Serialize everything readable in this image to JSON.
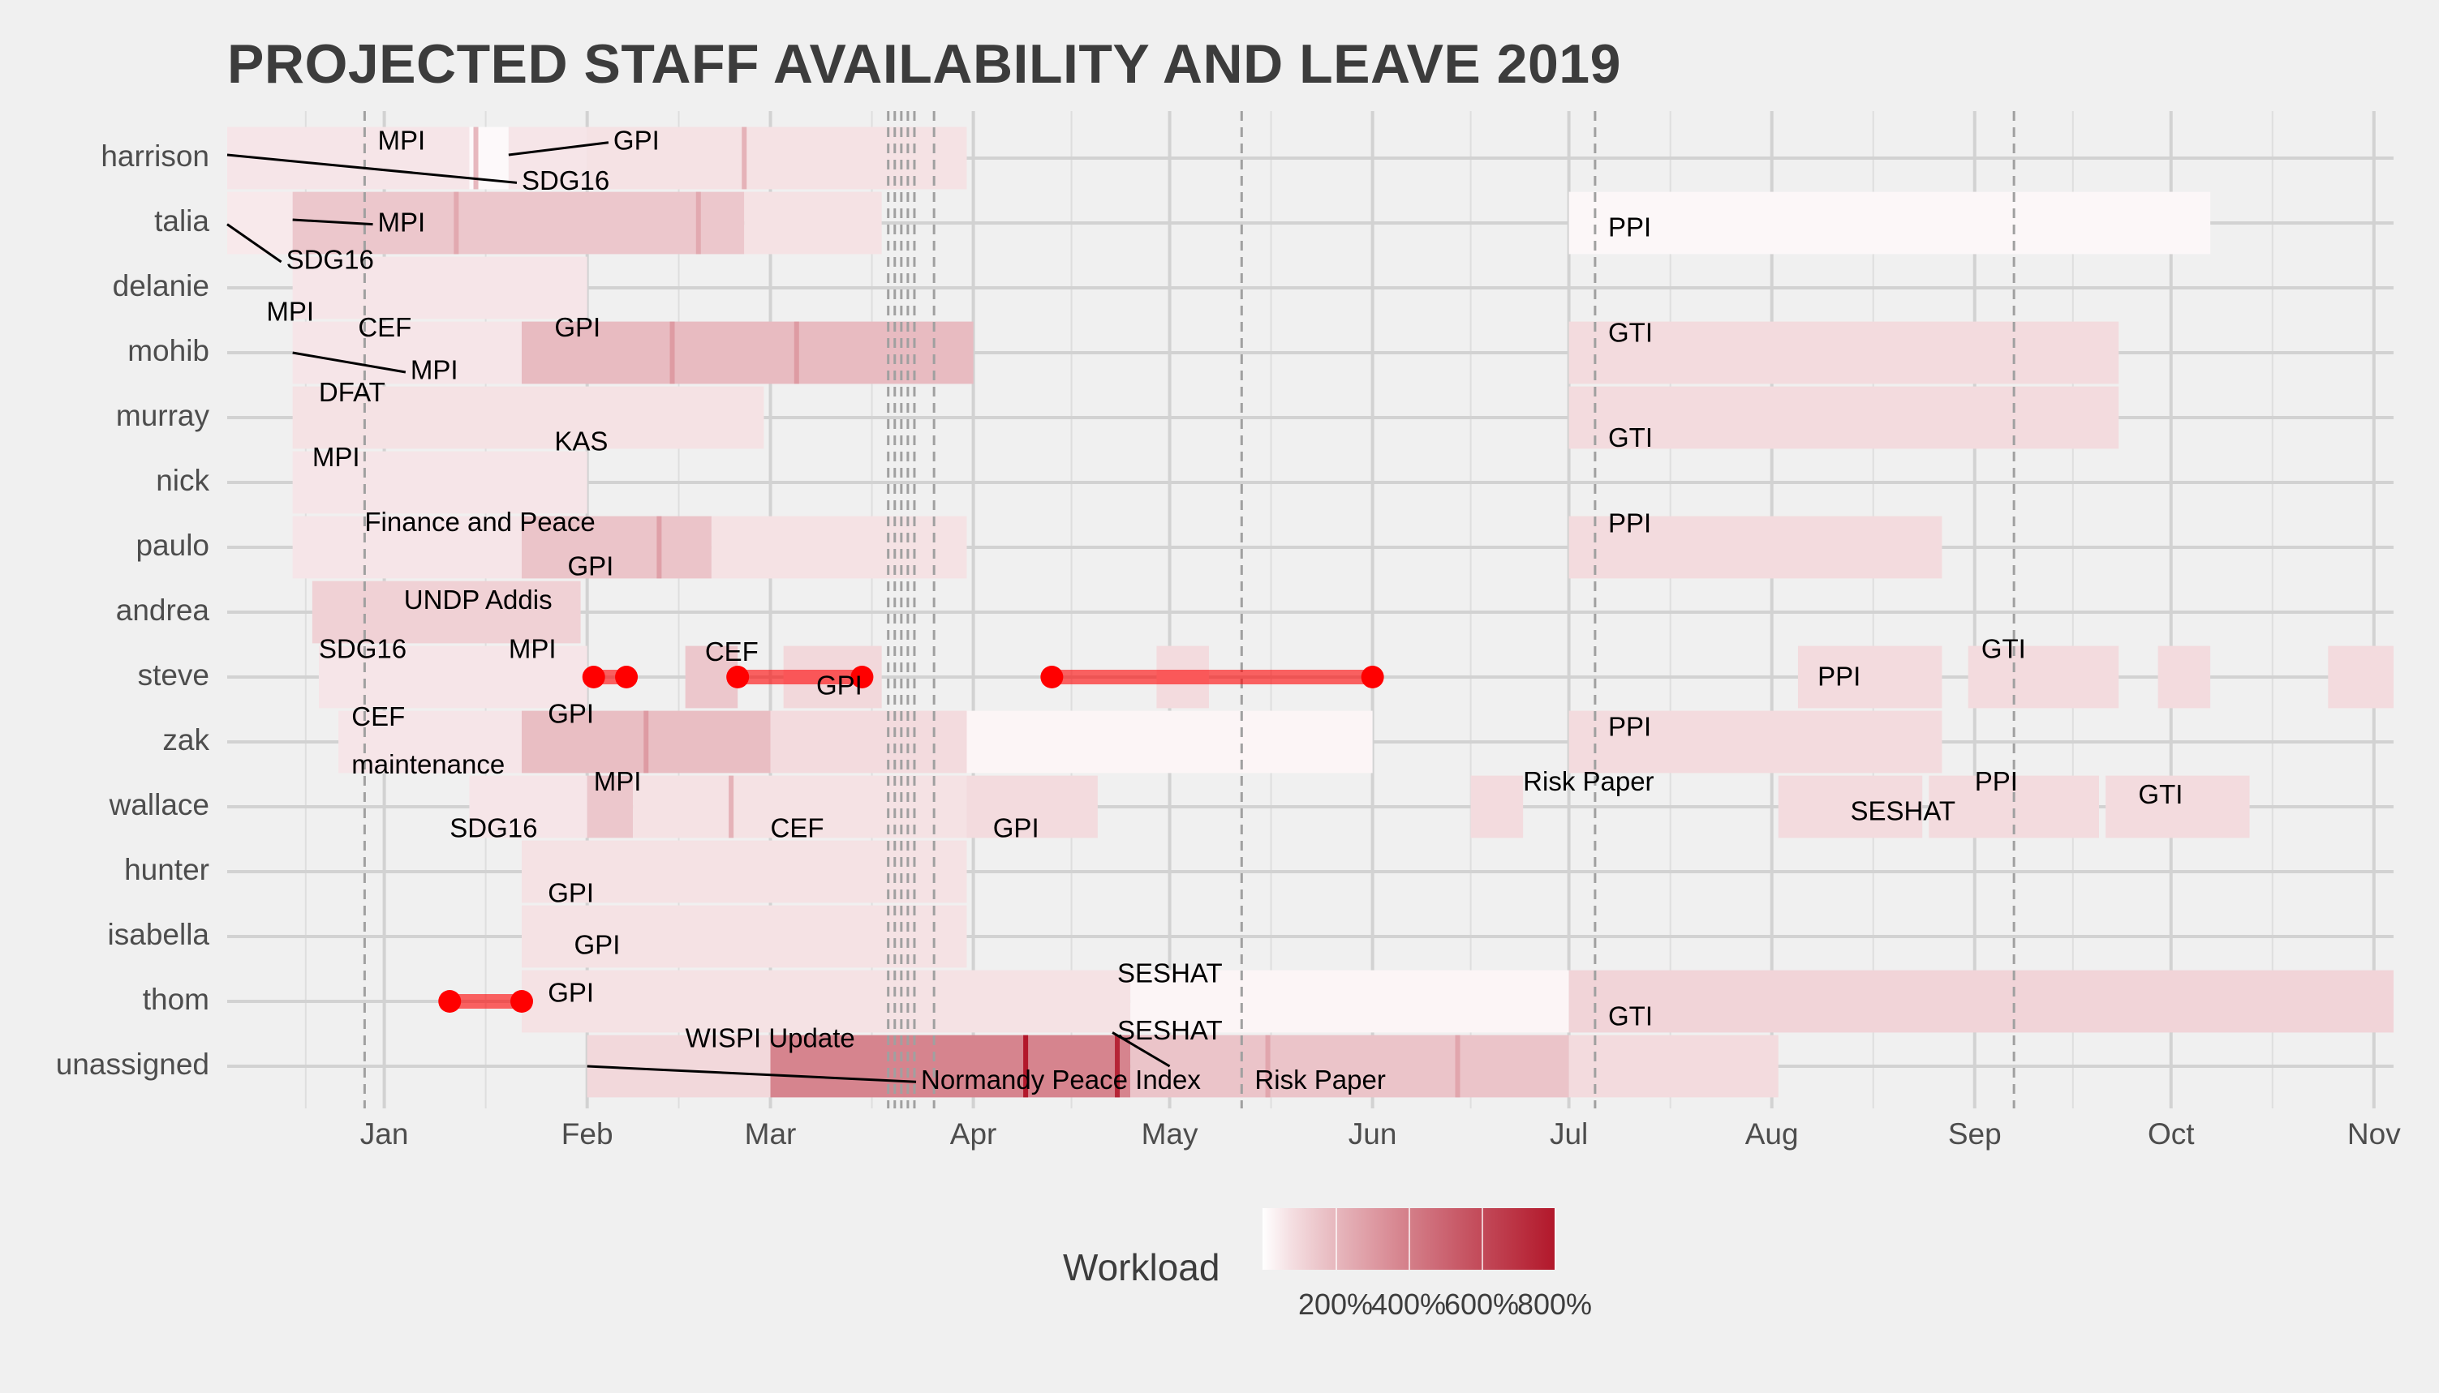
{
  "title": "PROJECTED STAFF AVAILABILITY AND LEAVE 2019",
  "colors": {
    "low": "#ffffff",
    "high": "#b2182b",
    "leave": "#ff0000",
    "grid": "#d2d2d2",
    "text": "#3c3c3c",
    "background": "#f0f0f0"
  },
  "legend": {
    "title": "Workload",
    "ticks": [
      "200%",
      "400%",
      "600%",
      "800%"
    ],
    "tick_values": [
      200,
      400,
      600,
      800
    ],
    "range": [
      0,
      800
    ]
  },
  "chart_data": {
    "type": "gantt",
    "title": "PROJECTED STAFF AVAILABILITY AND LEAVE 2019",
    "x_axis": {
      "range": [
        "2018-12-08",
        "2019-11-04"
      ],
      "ticks": [
        "Jan",
        "Feb",
        "Mar",
        "Apr",
        "May",
        "Jun",
        "Jul",
        "Aug",
        "Sep",
        "Oct",
        "Nov"
      ],
      "tick_dates": [
        "2019-01-01",
        "2019-02-01",
        "2019-03-01",
        "2019-04-01",
        "2019-05-01",
        "2019-06-01",
        "2019-07-01",
        "2019-08-01",
        "2019-09-01",
        "2019-10-01",
        "2019-11-01"
      ]
    },
    "staff": [
      "harrison",
      "talia",
      "delanie",
      "mohib",
      "murray",
      "nick",
      "paulo",
      "andrea",
      "steve",
      "zak",
      "wallace",
      "hunter",
      "isabella",
      "thom",
      "unassigned"
    ],
    "reference_lines": [
      "2018-12-29",
      "2019-03-19",
      "2019-03-20",
      "2019-03-21",
      "2019-03-22",
      "2019-03-23",
      "2019-03-26",
      "2019-05-12",
      "2019-07-05",
      "2019-09-07"
    ],
    "workload_segments": [
      {
        "staff": "harrison",
        "start": "2018-12-08",
        "end": "2019-01-14",
        "workload": 60
      },
      {
        "staff": "harrison",
        "start": "2019-01-14",
        "end": "2019-01-20",
        "workload": 10
      },
      {
        "staff": "harrison",
        "start": "2019-01-20",
        "end": "2019-02-01",
        "workload": 60
      },
      {
        "staff": "harrison",
        "start": "2019-02-01",
        "end": "2019-03-31",
        "workload": 70
      },
      {
        "staff": "talia",
        "start": "2018-12-08",
        "end": "2018-12-18",
        "workload": 50
      },
      {
        "staff": "talia",
        "start": "2018-12-18",
        "end": "2019-02-25",
        "workload": 150
      },
      {
        "staff": "talia",
        "start": "2019-02-25",
        "end": "2019-03-18",
        "workload": 70
      },
      {
        "staff": "talia",
        "start": "2019-07-01",
        "end": "2019-10-07",
        "workload": 15
      },
      {
        "staff": "delanie",
        "start": "2018-12-18",
        "end": "2019-02-01",
        "workload": 60
      },
      {
        "staff": "mohib",
        "start": "2018-12-18",
        "end": "2019-01-22",
        "workload": 60
      },
      {
        "staff": "mohib",
        "start": "2019-01-22",
        "end": "2019-04-01",
        "workload": 190
      },
      {
        "staff": "mohib",
        "start": "2019-07-01",
        "end": "2019-09-23",
        "workload": 90
      },
      {
        "staff": "murray",
        "start": "2018-12-18",
        "end": "2019-02-28",
        "workload": 70
      },
      {
        "staff": "murray",
        "start": "2019-07-01",
        "end": "2019-09-23",
        "workload": 90
      },
      {
        "staff": "nick",
        "start": "2018-12-18",
        "end": "2019-02-01",
        "workload": 60
      },
      {
        "staff": "paulo",
        "start": "2018-12-18",
        "end": "2019-01-22",
        "workload": 60
      },
      {
        "staff": "paulo",
        "start": "2019-01-22",
        "end": "2019-02-20",
        "workload": 160
      },
      {
        "staff": "paulo",
        "start": "2019-02-20",
        "end": "2019-03-31",
        "workload": 70
      },
      {
        "staff": "paulo",
        "start": "2019-07-01",
        "end": "2019-08-27",
        "workload": 90
      },
      {
        "staff": "andrea",
        "start": "2018-12-21",
        "end": "2019-01-31",
        "workload": 120
      },
      {
        "staff": "steve",
        "start": "2018-12-22",
        "end": "2019-02-01",
        "workload": 60
      },
      {
        "staff": "steve",
        "start": "2019-02-16",
        "end": "2019-02-24",
        "workload": 150
      },
      {
        "staff": "steve",
        "start": "2019-03-03",
        "end": "2019-03-18",
        "workload": 100
      },
      {
        "staff": "steve",
        "start": "2019-04-29",
        "end": "2019-05-07",
        "workload": 90
      },
      {
        "staff": "steve",
        "start": "2019-08-05",
        "end": "2019-08-27",
        "workload": 90
      },
      {
        "staff": "steve",
        "start": "2019-08-31",
        "end": "2019-09-23",
        "workload": 90
      },
      {
        "staff": "steve",
        "start": "2019-09-29",
        "end": "2019-10-07",
        "workload": 90
      },
      {
        "staff": "steve",
        "start": "2019-10-25",
        "end": "2019-11-04",
        "workload": 90
      },
      {
        "staff": "zak",
        "start": "2018-12-25",
        "end": "2019-01-22",
        "workload": 60
      },
      {
        "staff": "zak",
        "start": "2019-01-22",
        "end": "2019-03-01",
        "workload": 180
      },
      {
        "staff": "zak",
        "start": "2019-03-01",
        "end": "2019-03-31",
        "workload": 90
      },
      {
        "staff": "zak",
        "start": "2019-03-31",
        "end": "2019-06-01",
        "workload": 20
      },
      {
        "staff": "zak",
        "start": "2019-07-01",
        "end": "2019-08-27",
        "workload": 90
      },
      {
        "staff": "wallace",
        "start": "2019-01-14",
        "end": "2019-02-01",
        "workload": 60
      },
      {
        "staff": "wallace",
        "start": "2019-02-01",
        "end": "2019-02-08",
        "workload": 150
      },
      {
        "staff": "wallace",
        "start": "2019-02-08",
        "end": "2019-03-31",
        "workload": 70
      },
      {
        "staff": "wallace",
        "start": "2019-03-31",
        "end": "2019-04-20",
        "workload": 90
      },
      {
        "staff": "wallace",
        "start": "2019-06-16",
        "end": "2019-06-24",
        "workload": 90
      },
      {
        "staff": "wallace",
        "start": "2019-08-02",
        "end": "2019-08-24",
        "workload": 90
      },
      {
        "staff": "wallace",
        "start": "2019-08-25",
        "end": "2019-09-20",
        "workload": 90
      },
      {
        "staff": "wallace",
        "start": "2019-09-21",
        "end": "2019-10-13",
        "workload": 90
      },
      {
        "staff": "hunter",
        "start": "2019-01-22",
        "end": "2019-03-31",
        "workload": 70
      },
      {
        "staff": "isabella",
        "start": "2019-01-22",
        "end": "2019-03-31",
        "workload": 70
      },
      {
        "staff": "thom",
        "start": "2019-01-22",
        "end": "2019-03-31",
        "workload": 70
      },
      {
        "staff": "thom",
        "start": "2019-03-30",
        "end": "2019-04-25",
        "workload": 70
      },
      {
        "staff": "thom",
        "start": "2019-04-25",
        "end": "2019-07-01",
        "workload": 20
      },
      {
        "staff": "thom",
        "start": "2019-07-01",
        "end": "2019-11-04",
        "workload": 110
      },
      {
        "staff": "unassigned",
        "start": "2019-02-01",
        "end": "2019-03-01",
        "workload": 100
      },
      {
        "staff": "unassigned",
        "start": "2019-03-01",
        "end": "2019-04-25",
        "workload": 380
      },
      {
        "staff": "unassigned",
        "start": "2019-04-25",
        "end": "2019-07-01",
        "workload": 160
      },
      {
        "staff": "unassigned",
        "start": "2019-07-01",
        "end": "2019-08-02",
        "workload": 90
      }
    ],
    "peak_lines": [
      {
        "staff": "harrison",
        "date": "2019-01-15",
        "workload": 200
      },
      {
        "staff": "harrison",
        "date": "2019-02-25",
        "workload": 220
      },
      {
        "staff": "talia",
        "date": "2019-01-12",
        "workload": 250
      },
      {
        "staff": "talia",
        "date": "2019-02-18",
        "workload": 250
      },
      {
        "staff": "mohib",
        "date": "2019-02-14",
        "workload": 300
      },
      {
        "staff": "mohib",
        "date": "2019-03-05",
        "workload": 300
      },
      {
        "staff": "paulo",
        "date": "2019-02-12",
        "workload": 280
      },
      {
        "staff": "zak",
        "date": "2019-02-10",
        "workload": 300
      },
      {
        "staff": "wallace",
        "date": "2019-02-23",
        "workload": 220
      },
      {
        "staff": "unassigned",
        "date": "2019-04-09",
        "workload": 800
      },
      {
        "staff": "unassigned",
        "date": "2019-04-23",
        "workload": 750
      },
      {
        "staff": "unassigned",
        "date": "2019-05-16",
        "workload": 260
      },
      {
        "staff": "unassigned",
        "date": "2019-06-14",
        "workload": 260
      }
    ],
    "leave": [
      {
        "staff": "steve",
        "start": "2019-02-02",
        "end": "2019-02-07"
      },
      {
        "staff": "steve",
        "start": "2019-02-24",
        "end": "2019-03-15"
      },
      {
        "staff": "steve",
        "start": "2019-04-13",
        "end": "2019-06-01"
      },
      {
        "staff": "thom",
        "start": "2019-01-11",
        "end": "2019-01-22"
      }
    ],
    "labels": [
      {
        "staff": "harrison",
        "text": "MPI",
        "date": "2018-12-31",
        "offset": -0.24
      },
      {
        "staff": "harrison",
        "text": "GPI",
        "date": "2019-02-05",
        "offset": -0.24,
        "leader": {
          "date": "2019-01-20",
          "offset": -0.05
        }
      },
      {
        "staff": "harrison",
        "text": "SDG16",
        "date": "2019-01-22",
        "offset": 0.38,
        "leader": {
          "date": "2018-12-08",
          "offset": -0.05
        }
      },
      {
        "staff": "talia",
        "text": "MPI",
        "date": "2018-12-31",
        "offset": 0.02,
        "leader": {
          "date": "2018-12-18",
          "offset": -0.05
        }
      },
      {
        "staff": "talia",
        "text": "SDG16",
        "date": "2018-12-17",
        "offset": 0.6,
        "leader": {
          "date": "2018-12-08",
          "offset": 0.02
        }
      },
      {
        "staff": "mohib",
        "text": "MPI",
        "date": "2018-12-14",
        "offset": -0.6
      },
      {
        "staff": "mohib",
        "text": "CEF",
        "date": "2018-12-28",
        "offset": -0.36
      },
      {
        "staff": "mohib",
        "text": "GPI",
        "date": "2019-01-27",
        "offset": -0.36
      },
      {
        "staff": "mohib",
        "text": "MPI",
        "date": "2019-01-05",
        "offset": 0.3,
        "leader": {
          "date": "2018-12-18",
          "offset": 0.0
        }
      },
      {
        "staff": "mohib",
        "text": "DFAT",
        "date": "2018-12-22",
        "offset": 0.64
      },
      {
        "staff": "murray",
        "text": "KAS",
        "date": "2019-01-27",
        "offset": 0.4
      },
      {
        "staff": "nick",
        "text": "MPI",
        "date": "2018-12-21",
        "offset": -0.36
      },
      {
        "staff": "nick",
        "text": "Finance and Peace",
        "date": "2018-12-29",
        "offset": 0.64
      },
      {
        "staff": "paulo",
        "text": "GPI",
        "date": "2019-01-29",
        "offset": 0.32
      },
      {
        "staff": "andrea",
        "text": "UNDP Addis",
        "date": "2019-01-04",
        "offset": -0.16
      },
      {
        "staff": "steve",
        "text": "SDG16",
        "date": "2018-12-22",
        "offset": -0.4
      },
      {
        "staff": "steve",
        "text": "MPI",
        "date": "2019-01-20",
        "offset": -0.4
      },
      {
        "staff": "steve",
        "text": "CEF",
        "date": "2019-02-19",
        "offset": -0.36
      },
      {
        "staff": "steve",
        "text": "GPI",
        "date": "2019-03-08",
        "offset": 0.16
      },
      {
        "staff": "steve",
        "text": "PPI",
        "date": "2019-08-08",
        "offset": 0.02
      },
      {
        "staff": "steve",
        "text": "GTI",
        "date": "2019-09-02",
        "offset": -0.4
      },
      {
        "staff": "zak",
        "text": "CEF",
        "date": "2018-12-27",
        "offset": -0.36
      },
      {
        "staff": "zak",
        "text": "GPI",
        "date": "2019-01-26",
        "offset": -0.4
      },
      {
        "staff": "zak",
        "text": "maintenance",
        "date": "2018-12-27",
        "offset": 0.38
      },
      {
        "staff": "zak",
        "text": "PPI",
        "date": "2019-07-07",
        "offset": -0.2
      },
      {
        "staff": "wallace",
        "text": "MPI",
        "date": "2019-02-02",
        "offset": -0.36
      },
      {
        "staff": "wallace",
        "text": "SDG16",
        "date": "2019-01-11",
        "offset": 0.36
      },
      {
        "staff": "wallace",
        "text": "CEF",
        "date": "2019-02-29",
        "offset": 0.36
      },
      {
        "staff": "wallace",
        "text": "GPI",
        "date": "2019-04-04",
        "offset": 0.36
      },
      {
        "staff": "wallace",
        "text": "Risk Paper",
        "date": "2019-06-24",
        "offset": -0.36
      },
      {
        "staff": "wallace",
        "text": "SESHAT",
        "date": "2019-08-13",
        "offset": 0.1
      },
      {
        "staff": "wallace",
        "text": "PPI",
        "date": "2019-09-01",
        "offset": -0.36
      },
      {
        "staff": "wallace",
        "text": "GTI",
        "date": "2019-09-26",
        "offset": -0.16
      },
      {
        "staff": "hunter",
        "text": "GPI",
        "date": "2019-01-26",
        "offset": 0.36
      },
      {
        "staff": "isabella",
        "text": "GPI",
        "date": "2019-01-30",
        "offset": 0.16
      },
      {
        "staff": "thom",
        "text": "GPI",
        "date": "2019-01-26",
        "offset": -0.1
      },
      {
        "staff": "thom",
        "text": "SESHAT",
        "date": "2019-04-23",
        "offset": -0.4
      },
      {
        "staff": "thom",
        "text": "GTI",
        "date": "2019-07-07",
        "offset": 0.26
      },
      {
        "staff": "unassigned",
        "text": "WISPI Update",
        "date": "2019-02-16",
        "offset": -0.4,
        "leader": null
      },
      {
        "staff": "unassigned",
        "text": "Normandy Peace Index",
        "date": "2019-03-24",
        "offset": 0.24,
        "leader": {
          "date": "2019-02-01",
          "offset": 0.0
        }
      },
      {
        "staff": "unassigned",
        "text": "SESHAT",
        "date": "2019-04-23",
        "offset": -0.52,
        "leader": {
          "date": "2019-05-01",
          "offset": 0.0
        }
      },
      {
        "staff": "unassigned",
        "text": "Risk Paper",
        "date": "2019-05-14",
        "offset": 0.24
      },
      {
        "staff": "talia",
        "text": "PPI",
        "date": "2019-07-07",
        "offset": 0.1
      },
      {
        "staff": "mohib",
        "text": "GTI",
        "date": "2019-07-07",
        "offset": -0.28
      },
      {
        "staff": "murray",
        "text": "GTI",
        "date": "2019-07-07",
        "offset": 0.34
      },
      {
        "staff": "paulo",
        "text": "PPI",
        "date": "2019-07-07",
        "offset": -0.34
      }
    ]
  }
}
